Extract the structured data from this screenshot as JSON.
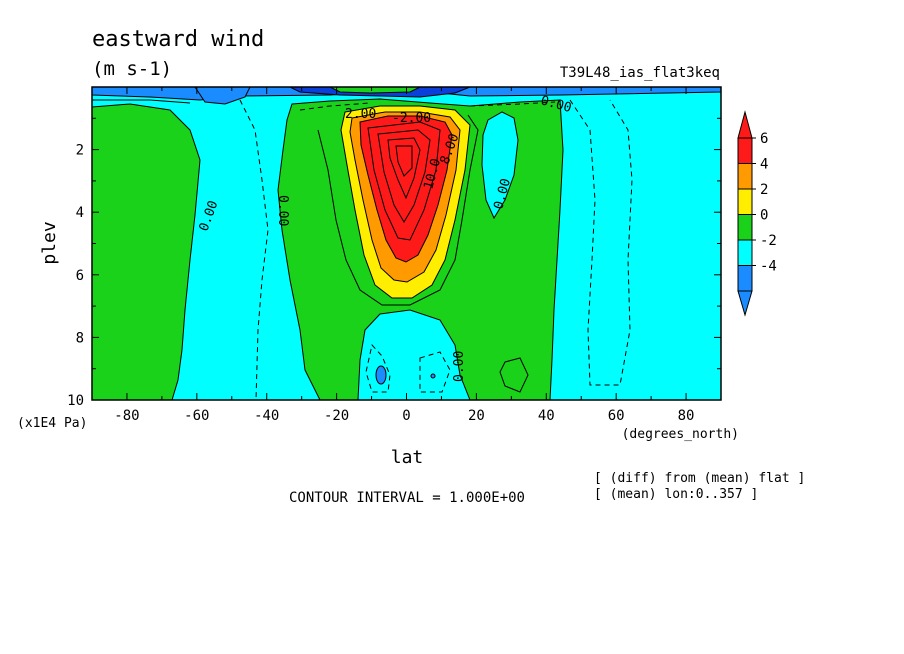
{
  "chart_data": {
    "type": "contour",
    "title": "eastward wind",
    "units": "(m s-1)",
    "run_label": "T39L48_ias_flat3keq",
    "xlabel": "lat",
    "xunits": "(degrees_north)",
    "ylabel": "plev",
    "yunits": "(x1E4 Pa)",
    "xlim": [
      -90,
      90
    ],
    "ylim": [
      0,
      10
    ],
    "y_inverted": true,
    "x_ticks": [
      -80,
      -60,
      -40,
      -20,
      0,
      20,
      40,
      60,
      80
    ],
    "y_ticks": [
      2,
      4,
      6,
      8,
      10
    ],
    "contour_interval_text": "CONTOUR INTERVAL = 1.000E+00",
    "notes": [
      "[ (diff) from (mean) flat ]",
      "[ (mean) lon:0..357 ]"
    ],
    "colorbar": {
      "ticks": [
        6,
        4,
        2,
        0,
        -2,
        -4
      ],
      "colors": [
        "#ff1a1a",
        "#ff9a00",
        "#ffee00",
        "#1ad21a",
        "#00ffff",
        "#1a8cff"
      ],
      "extend": "both"
    },
    "contour_labels": [
      "0.00",
      "0.00",
      "0.00",
      "0.00",
      "0.00",
      "10.0",
      "8.00",
      "2.00",
      "-2.00"
    ],
    "approx_field": {
      "negative_regions": [
        "lat -90..-57 below plev 1",
        "lat -10..15 plev 7..10",
        "lat 20..32 plev 2..4.5",
        "lat 45..90 all levels",
        "near top plev 0..1"
      ],
      "jet_maximum": {
        "lat": 0,
        "plev": 1.5,
        "value": 10
      }
    }
  }
}
